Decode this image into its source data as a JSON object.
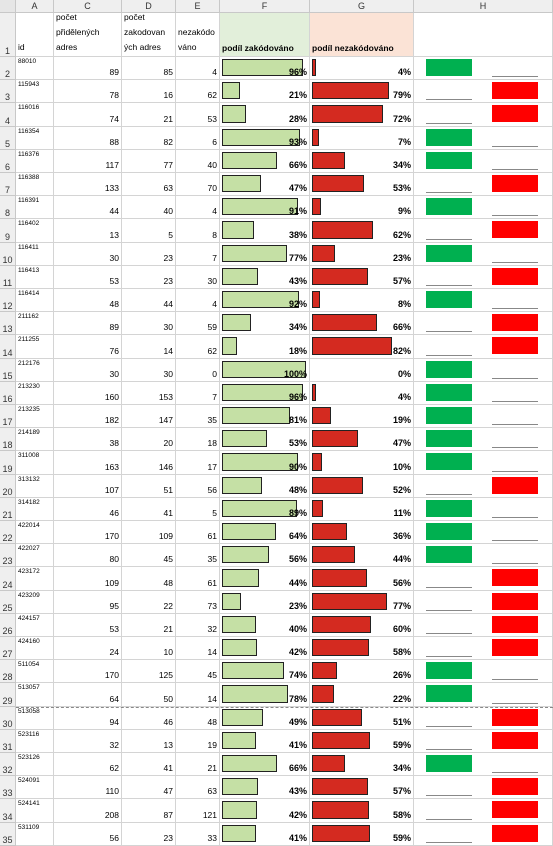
{
  "columns": [
    "A",
    "C",
    "D",
    "E",
    "F",
    "G",
    "H"
  ],
  "header_labels": {
    "A": "id",
    "C": "počet\npřidělených\nadres",
    "D": "počet\nzakodovan\ných adres",
    "E": "nezakódo\nváno",
    "F": "podíl zakódováno",
    "G": "podíl nezakódováno"
  },
  "colors": {
    "green_bar": "#c5e0a5",
    "red_bar": "#d42a20",
    "green_flag": "#00b050",
    "red_flag": "#ff0000",
    "header_f_bg": "#e2efda",
    "header_g_bg": "#fbe3d6"
  },
  "rows": [
    {
      "n": "2",
      "id": "88010",
      "c": "89",
      "d": "85",
      "e": "4",
      "f": "96%",
      "g": "4%",
      "fv": 0.96,
      "gv": 0.04,
      "flag": "green"
    },
    {
      "n": "3",
      "id": "115943",
      "c": "78",
      "d": "16",
      "e": "62",
      "f": "21%",
      "g": "79%",
      "fv": 0.21,
      "gv": 0.79,
      "flag": "red"
    },
    {
      "n": "4",
      "id": "116016",
      "c": "74",
      "d": "21",
      "e": "53",
      "f": "28%",
      "g": "72%",
      "fv": 0.28,
      "gv": 0.72,
      "flag": "red"
    },
    {
      "n": "5",
      "id": "116354",
      "c": "88",
      "d": "82",
      "e": "6",
      "f": "93%",
      "g": "7%",
      "fv": 0.93,
      "gv": 0.07,
      "flag": "green"
    },
    {
      "n": "6",
      "id": "116376",
      "c": "117",
      "d": "77",
      "e": "40",
      "f": "66%",
      "g": "34%",
      "fv": 0.66,
      "gv": 0.34,
      "flag": "green"
    },
    {
      "n": "7",
      "id": "116388",
      "c": "133",
      "d": "63",
      "e": "70",
      "f": "47%",
      "g": "53%",
      "fv": 0.47,
      "gv": 0.53,
      "flag": "red"
    },
    {
      "n": "8",
      "id": "116391",
      "c": "44",
      "d": "40",
      "e": "4",
      "f": "91%",
      "g": "9%",
      "fv": 0.91,
      "gv": 0.09,
      "flag": "green"
    },
    {
      "n": "9",
      "id": "116402",
      "c": "13",
      "d": "5",
      "e": "8",
      "f": "38%",
      "g": "62%",
      "fv": 0.38,
      "gv": 0.62,
      "flag": "red"
    },
    {
      "n": "10",
      "id": "116411",
      "c": "30",
      "d": "23",
      "e": "7",
      "f": "77%",
      "g": "23%",
      "fv": 0.77,
      "gv": 0.23,
      "flag": "green"
    },
    {
      "n": "11",
      "id": "116413",
      "c": "53",
      "d": "23",
      "e": "30",
      "f": "43%",
      "g": "57%",
      "fv": 0.43,
      "gv": 0.57,
      "flag": "red"
    },
    {
      "n": "12",
      "id": "116414",
      "c": "48",
      "d": "44",
      "e": "4",
      "f": "92%",
      "g": "8%",
      "fv": 0.92,
      "gv": 0.08,
      "flag": "green"
    },
    {
      "n": "13",
      "id": "211162",
      "c": "89",
      "d": "30",
      "e": "59",
      "f": "34%",
      "g": "66%",
      "fv": 0.34,
      "gv": 0.66,
      "flag": "red"
    },
    {
      "n": "14",
      "id": "211255",
      "c": "76",
      "d": "14",
      "e": "62",
      "f": "18%",
      "g": "82%",
      "fv": 0.18,
      "gv": 0.82,
      "flag": "red"
    },
    {
      "n": "15",
      "id": "212176",
      "c": "30",
      "d": "30",
      "e": "0",
      "f": "100%",
      "g": "0%",
      "fv": 1.0,
      "gv": 0.0,
      "flag": "green"
    },
    {
      "n": "16",
      "id": "213230",
      "c": "160",
      "d": "153",
      "e": "7",
      "f": "96%",
      "g": "4%",
      "fv": 0.96,
      "gv": 0.04,
      "flag": "green"
    },
    {
      "n": "17",
      "id": "213235",
      "c": "182",
      "d": "147",
      "e": "35",
      "f": "81%",
      "g": "19%",
      "fv": 0.81,
      "gv": 0.19,
      "flag": "green"
    },
    {
      "n": "18",
      "id": "214189",
      "c": "38",
      "d": "20",
      "e": "18",
      "f": "53%",
      "g": "47%",
      "fv": 0.53,
      "gv": 0.47,
      "flag": "green"
    },
    {
      "n": "19",
      "id": "311008",
      "c": "163",
      "d": "146",
      "e": "17",
      "f": "90%",
      "g": "10%",
      "fv": 0.9,
      "gv": 0.1,
      "flag": "green"
    },
    {
      "n": "20",
      "id": "313132",
      "c": "107",
      "d": "51",
      "e": "56",
      "f": "48%",
      "g": "52%",
      "fv": 0.48,
      "gv": 0.52,
      "flag": "red"
    },
    {
      "n": "21",
      "id": "314182",
      "c": "46",
      "d": "41",
      "e": "5",
      "f": "89%",
      "g": "11%",
      "fv": 0.89,
      "gv": 0.11,
      "flag": "green"
    },
    {
      "n": "22",
      "id": "422014",
      "c": "170",
      "d": "109",
      "e": "61",
      "f": "64%",
      "g": "36%",
      "fv": 0.64,
      "gv": 0.36,
      "flag": "green"
    },
    {
      "n": "23",
      "id": "422027",
      "c": "80",
      "d": "45",
      "e": "35",
      "f": "56%",
      "g": "44%",
      "fv": 0.56,
      "gv": 0.44,
      "flag": "green"
    },
    {
      "n": "24",
      "id": "423172",
      "c": "109",
      "d": "48",
      "e": "61",
      "f": "44%",
      "g": "56%",
      "fv": 0.44,
      "gv": 0.56,
      "flag": "red"
    },
    {
      "n": "25",
      "id": "423209",
      "c": "95",
      "d": "22",
      "e": "73",
      "f": "23%",
      "g": "77%",
      "fv": 0.23,
      "gv": 0.77,
      "flag": "red"
    },
    {
      "n": "26",
      "id": "424157",
      "c": "53",
      "d": "21",
      "e": "32",
      "f": "40%",
      "g": "60%",
      "fv": 0.4,
      "gv": 0.6,
      "flag": "red"
    },
    {
      "n": "27",
      "id": "424160",
      "c": "24",
      "d": "10",
      "e": "14",
      "f": "42%",
      "g": "58%",
      "fv": 0.42,
      "gv": 0.58,
      "flag": "red"
    },
    {
      "n": "28",
      "id": "511054",
      "c": "170",
      "d": "125",
      "e": "45",
      "f": "74%",
      "g": "26%",
      "fv": 0.74,
      "gv": 0.26,
      "flag": "green"
    },
    {
      "n": "29",
      "id": "513057",
      "c": "64",
      "d": "50",
      "e": "14",
      "f": "78%",
      "g": "22%",
      "fv": 0.78,
      "gv": 0.22,
      "flag": "green"
    },
    {
      "n": "30",
      "id": "513058",
      "c": "94",
      "d": "46",
      "e": "48",
      "f": "49%",
      "g": "51%",
      "fv": 0.49,
      "gv": 0.51,
      "flag": "red"
    },
    {
      "n": "31",
      "id": "523116",
      "c": "32",
      "d": "13",
      "e": "19",
      "f": "41%",
      "g": "59%",
      "fv": 0.41,
      "gv": 0.59,
      "flag": "red"
    },
    {
      "n": "32",
      "id": "523126",
      "c": "62",
      "d": "41",
      "e": "21",
      "f": "66%",
      "g": "34%",
      "fv": 0.66,
      "gv": 0.34,
      "flag": "green"
    },
    {
      "n": "33",
      "id": "524091",
      "c": "110",
      "d": "47",
      "e": "63",
      "f": "43%",
      "g": "57%",
      "fv": 0.43,
      "gv": 0.57,
      "flag": "red"
    },
    {
      "n": "34",
      "id": "524141",
      "c": "208",
      "d": "87",
      "e": "121",
      "f": "42%",
      "g": "58%",
      "fv": 0.42,
      "gv": 0.58,
      "flag": "red"
    },
    {
      "n": "35",
      "id": "531109",
      "c": "56",
      "d": "23",
      "e": "33",
      "f": "41%",
      "g": "59%",
      "fv": 0.41,
      "gv": 0.59,
      "flag": "red"
    }
  ]
}
